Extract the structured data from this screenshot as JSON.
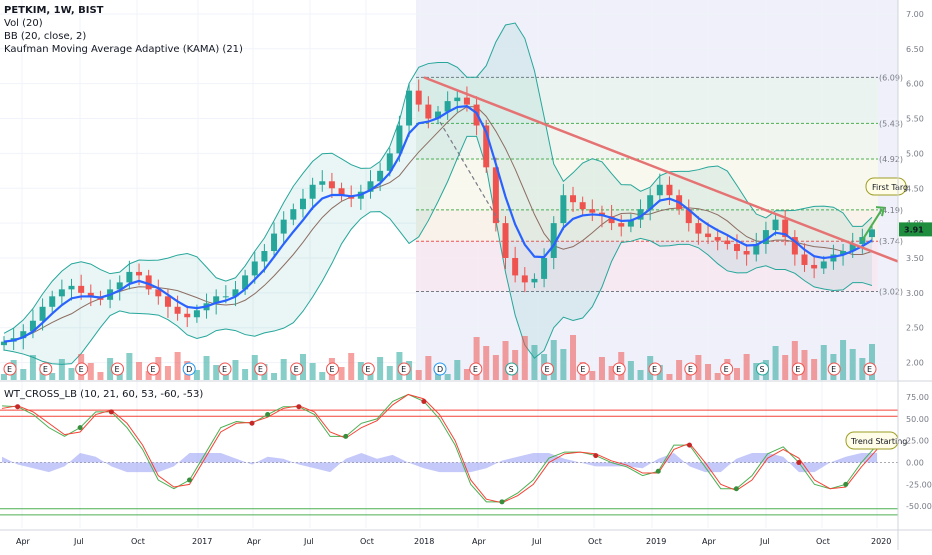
{
  "legend": {
    "symbol": "PETKIM, 1W, BIST",
    "volume": "Vol (20)",
    "bb": "BB (20, close, 2)",
    "kama": "Kaufman Moving Average Adaptive (KAMA) (21)",
    "wt": "WT_CROSS_LB (10, 21, 60, 53, -60, -53)"
  },
  "last_price": "3.91",
  "annotations": {
    "first_target": "First Targ",
    "trend_starting": "Trend Starting"
  },
  "colors": {
    "up": "#26a69a",
    "down": "#ef5350",
    "kama": "#2962ff",
    "bb_basis": "#8d6e63",
    "trend": "#e57373",
    "price_badge": "#1e8e3e",
    "wt1": "#4caf50",
    "wt2": "#f44336",
    "wt_diff": "#7e88f5",
    "fib_green": "#4caf50",
    "fib_red": "#ef5350"
  },
  "chart_data": [
    {
      "type": "candlestick",
      "y_axis_ticks": [
        "7.00",
        "6.50",
        "6.00",
        "5.50",
        "5.00",
        "4.50",
        "4.00",
        "3.50",
        "3.00",
        "2.50",
        "2.00"
      ],
      "ylim": [
        1.75,
        7.2
      ],
      "scale": "linear",
      "x_axis_ticks": [
        "Apr",
        "Jul",
        "Oct",
        "2017",
        "Apr",
        "Jul",
        "Oct",
        "2018",
        "Apr",
        "Jul",
        "Oct",
        "2019",
        "Apr",
        "Jul",
        "Oct",
        "2020"
      ],
      "fib_levels": [
        {
          "label": "(6.09)",
          "value": 6.09
        },
        {
          "label": "(5.43)",
          "value": 5.43
        },
        {
          "label": "(4.92)",
          "value": 4.92
        },
        {
          "label": "(4.19)",
          "value": 4.19
        },
        {
          "label": "(3.74)",
          "value": 3.74
        },
        {
          "label": "(3.02)",
          "value": 3.02
        }
      ],
      "series_close": [
        2.3,
        2.35,
        2.45,
        2.6,
        2.8,
        2.95,
        3.05,
        3.1,
        3.0,
        2.95,
        2.9,
        3.05,
        3.15,
        3.3,
        3.25,
        3.05,
        2.95,
        2.8,
        2.7,
        2.65,
        2.75,
        2.85,
        2.95,
        2.95,
        3.05,
        3.25,
        3.45,
        3.6,
        3.85,
        4.05,
        4.2,
        4.35,
        4.55,
        4.6,
        4.5,
        4.4,
        4.35,
        4.45,
        4.6,
        4.75,
        5.0,
        5.4,
        5.9,
        5.7,
        5.5,
        5.6,
        5.75,
        5.8,
        5.7,
        5.4,
        4.8,
        4.0,
        3.5,
        3.25,
        3.15,
        3.2,
        3.5,
        4.0,
        4.4,
        4.3,
        4.2,
        4.15,
        4.1,
        4.0,
        3.95,
        4.05,
        4.2,
        4.4,
        4.55,
        4.4,
        4.2,
        4.0,
        3.85,
        3.8,
        3.75,
        3.7,
        3.6,
        3.55,
        3.7,
        3.9,
        4.05,
        3.8,
        3.55,
        3.4,
        3.35,
        3.45,
        3.55,
        3.6,
        3.7,
        3.8,
        3.91
      ],
      "volume_events": [
        "E",
        "E",
        "E",
        "E",
        "E",
        "D",
        "E",
        "E",
        "E",
        "E",
        "E",
        "E",
        "D",
        "E",
        "S",
        "E",
        "E",
        "E",
        "E",
        "E",
        "E",
        "S",
        "E",
        "E",
        "E"
      ]
    },
    {
      "type": "line",
      "indicator": "WT_CROSS_LB",
      "y_axis_ticks": [
        "75.00",
        "50.00",
        "25.00",
        "0.00",
        "-25.00",
        "-50.00"
      ],
      "ylim": [
        -75,
        90
      ],
      "levels": [
        60,
        53,
        -60,
        -53
      ],
      "wt1": [
        65,
        64,
        55,
        40,
        30,
        40,
        58,
        58,
        40,
        15,
        -20,
        -30,
        -20,
        10,
        40,
        47,
        45,
        55,
        64,
        64,
        55,
        30,
        30,
        45,
        50,
        70,
        78,
        70,
        50,
        20,
        -25,
        -45,
        -45,
        -35,
        -20,
        5,
        12,
        12,
        8,
        0,
        -5,
        -15,
        -10,
        20,
        20,
        -5,
        -30,
        -30,
        -15,
        10,
        18,
        0,
        -25,
        -30,
        -25,
        0,
        20
      ],
      "wt2": [
        62,
        65,
        58,
        45,
        32,
        35,
        55,
        60,
        45,
        20,
        -15,
        -28,
        -25,
        5,
        35,
        45,
        46,
        52,
        62,
        65,
        58,
        35,
        28,
        40,
        48,
        66,
        78,
        73,
        55,
        25,
        -20,
        -42,
        -46,
        -38,
        -25,
        0,
        10,
        12,
        10,
        2,
        -3,
        -12,
        -12,
        15,
        22,
        0,
        -25,
        -32,
        -20,
        5,
        15,
        5,
        -20,
        -30,
        -28,
        -5,
        15
      ]
    }
  ]
}
